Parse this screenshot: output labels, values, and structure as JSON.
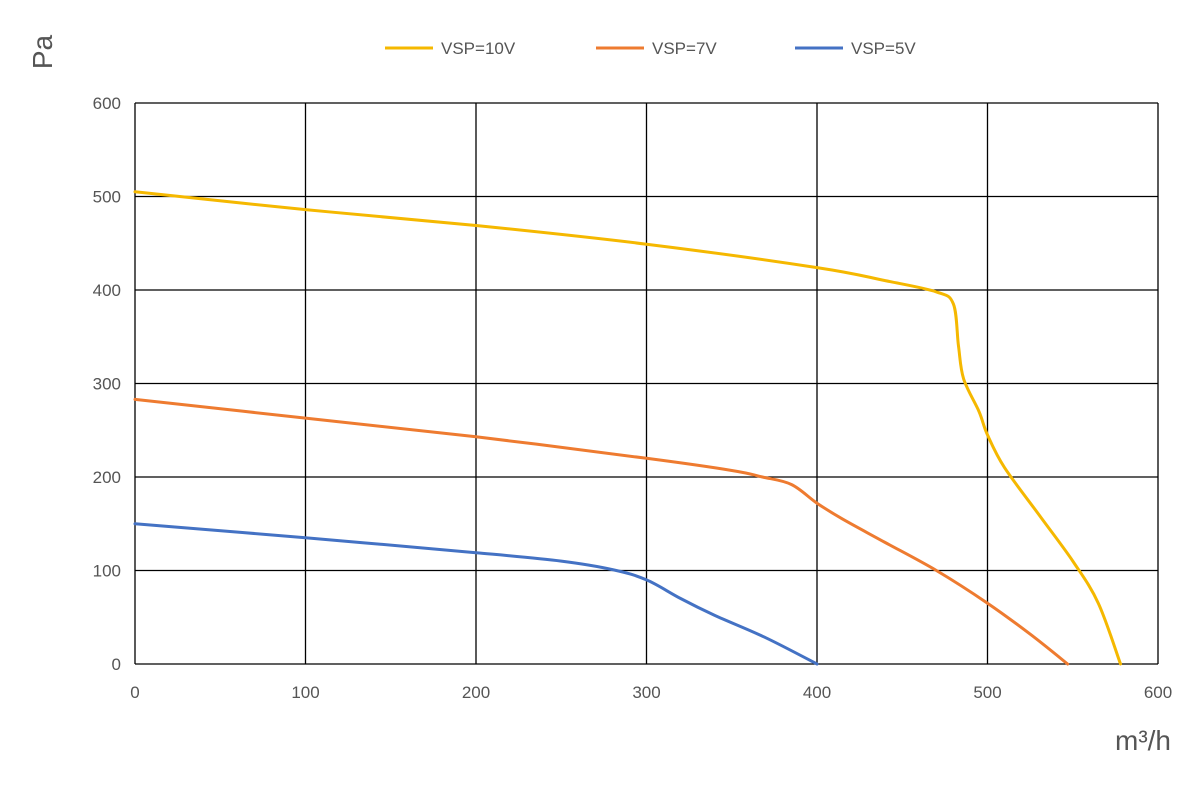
{
  "chart_data": {
    "type": "line",
    "title": "",
    "xlabel": "m³/h",
    "ylabel": "Pa",
    "xlim": [
      0,
      600
    ],
    "ylim": [
      0,
      600
    ],
    "xticks": [
      "0",
      "100",
      "200",
      "300",
      "400",
      "500",
      "600"
    ],
    "yticks": [
      "0",
      "100",
      "200",
      "300",
      "400",
      "500",
      "600"
    ],
    "grid": true,
    "legend_position": "top",
    "series": [
      {
        "name": "VSP=10V",
        "color": "#F5B800",
        "points": [
          [
            0,
            505
          ],
          [
            100,
            486
          ],
          [
            200,
            469
          ],
          [
            300,
            449
          ],
          [
            400,
            424
          ],
          [
            440,
            410
          ],
          [
            470,
            398
          ],
          [
            480,
            385
          ],
          [
            483,
            340
          ],
          [
            486,
            305
          ],
          [
            495,
            270
          ],
          [
            500,
            245
          ],
          [
            510,
            210
          ],
          [
            530,
            160
          ],
          [
            550,
            110
          ],
          [
            565,
            65
          ],
          [
            578,
            0
          ]
        ]
      },
      {
        "name": "VSP=7V",
        "color": "#EE7B30",
        "points": [
          [
            0,
            283
          ],
          [
            100,
            263
          ],
          [
            200,
            243
          ],
          [
            300,
            220
          ],
          [
            350,
            207
          ],
          [
            368,
            200
          ],
          [
            385,
            192
          ],
          [
            400,
            172
          ],
          [
            415,
            155
          ],
          [
            440,
            130
          ],
          [
            470,
            100
          ],
          [
            500,
            65
          ],
          [
            525,
            32
          ],
          [
            547,
            0
          ]
        ]
      },
      {
        "name": "VSP=5V",
        "color": "#4472C4",
        "points": [
          [
            0,
            150
          ],
          [
            100,
            135
          ],
          [
            200,
            119
          ],
          [
            250,
            110
          ],
          [
            280,
            101
          ],
          [
            300,
            90
          ],
          [
            320,
            70
          ],
          [
            340,
            52
          ],
          [
            370,
            28
          ],
          [
            400,
            0
          ]
        ]
      }
    ]
  }
}
